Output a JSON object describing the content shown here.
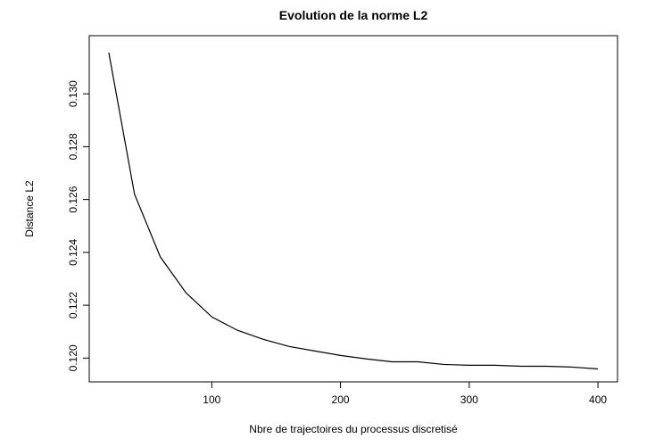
{
  "chart_data": {
    "type": "line",
    "title": "Evolution de la norme L2",
    "x_label": "Nbre de trajectoires du processus discretisé",
    "y_label": "Distance L2",
    "x": [
      20,
      40,
      60,
      80,
      100,
      120,
      140,
      160,
      180,
      200,
      220,
      240,
      260,
      280,
      300,
      320,
      340,
      360,
      380,
      400
    ],
    "series": [
      {
        "name": null,
        "color": "#000000",
        "values": [
          0.13156,
          0.1262,
          0.12383,
          0.12247,
          0.12156,
          0.12105,
          0.12071,
          0.12044,
          0.12027,
          0.1201,
          0.11997,
          0.11986,
          0.11986,
          0.11976,
          0.11973,
          0.11973,
          0.11969,
          0.11969,
          0.11966,
          0.11959
        ]
      }
    ],
    "xlim": [
      4.8,
      415.2
    ],
    "xticks": [
      100,
      200,
      300,
      400
    ],
    "ylim": [
      0.1191,
      0.1322
    ],
    "yticks": [
      {
        "value": 0.12,
        "label": "0.120"
      },
      0.122,
      0.124,
      0.126,
      0.128,
      {
        "value": 0.13,
        "label": "0.130"
      }
    ],
    "grid": false
  }
}
